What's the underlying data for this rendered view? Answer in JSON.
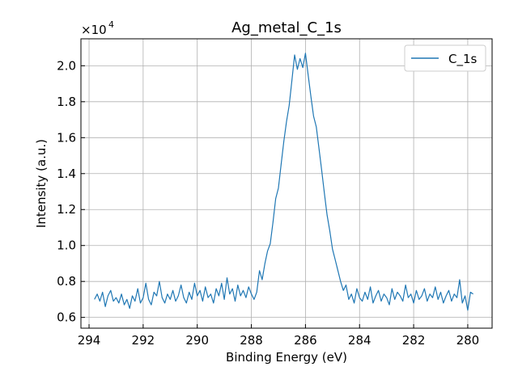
{
  "chart_data": {
    "type": "line",
    "title": "Ag_metal_C_1s",
    "xlabel": "Binding Energy (eV)",
    "ylabel": "Intensity (a.u.)",
    "y_scale_label": "×10",
    "y_scale_exponent": "4",
    "y_multiplier": 10000,
    "xlim": [
      294.3,
      279.1
    ],
    "ylim": [
      5400,
      21500
    ],
    "x_reversed": true,
    "grid": true,
    "legend_position": "top-right",
    "x_ticks": [
      294,
      292,
      290,
      288,
      286,
      284,
      282,
      280
    ],
    "x_tick_labels": [
      "294",
      "292",
      "290",
      "288",
      "286",
      "284",
      "282",
      "280"
    ],
    "y_ticks": [
      6000,
      8000,
      10000,
      12000,
      14000,
      16000,
      18000,
      20000
    ],
    "y_tick_labels": [
      "0.6",
      "0.8",
      "1.0",
      "1.2",
      "1.4",
      "1.6",
      "1.8",
      "2.0"
    ],
    "series": [
      {
        "name": "C_1s",
        "color": "#1f77b4",
        "x": [
          293.8,
          293.7,
          293.6,
          293.5,
          293.4,
          293.3,
          293.2,
          293.1,
          293.0,
          292.9,
          292.8,
          292.7,
          292.6,
          292.5,
          292.4,
          292.3,
          292.2,
          292.1,
          292.0,
          291.9,
          291.8,
          291.7,
          291.6,
          291.5,
          291.4,
          291.3,
          291.2,
          291.1,
          291.0,
          290.9,
          290.8,
          290.7,
          290.6,
          290.5,
          290.4,
          290.3,
          290.2,
          290.1,
          290.0,
          289.9,
          289.8,
          289.7,
          289.6,
          289.5,
          289.4,
          289.3,
          289.2,
          289.1,
          289.0,
          288.9,
          288.8,
          288.7,
          288.6,
          288.5,
          288.4,
          288.3,
          288.2,
          288.1,
          288.0,
          287.9,
          287.8,
          287.7,
          287.6,
          287.5,
          287.4,
          287.3,
          287.2,
          287.1,
          287.0,
          286.9,
          286.8,
          286.7,
          286.6,
          286.5,
          286.4,
          286.3,
          286.2,
          286.1,
          286.0,
          285.9,
          285.8,
          285.7,
          285.6,
          285.5,
          285.4,
          285.3,
          285.2,
          285.1,
          285.0,
          284.9,
          284.8,
          284.7,
          284.6,
          284.5,
          284.4,
          284.3,
          284.2,
          284.1,
          284.0,
          283.9,
          283.8,
          283.7,
          283.6,
          283.5,
          283.4,
          283.3,
          283.2,
          283.1,
          283.0,
          282.9,
          282.8,
          282.7,
          282.6,
          282.5,
          282.4,
          282.3,
          282.2,
          282.1,
          282.0,
          281.9,
          281.8,
          281.7,
          281.6,
          281.5,
          281.4,
          281.3,
          281.2,
          281.1,
          281.0,
          280.9,
          280.8,
          280.7,
          280.6,
          280.5,
          280.4,
          280.3,
          280.2,
          280.1,
          280.0,
          279.9,
          279.8
        ],
        "values": [
          7000,
          7300,
          6900,
          7400,
          6600,
          7200,
          7500,
          6900,
          7100,
          6800,
          7300,
          6700,
          7000,
          6500,
          7200,
          6900,
          7600,
          6800,
          7100,
          7900,
          7000,
          6700,
          7400,
          7200,
          8000,
          7100,
          6800,
          7300,
          7000,
          7500,
          6900,
          7200,
          7800,
          7100,
          6800,
          7400,
          7000,
          7900,
          7200,
          7500,
          6900,
          7700,
          7100,
          7300,
          6800,
          7600,
          7200,
          7900,
          7000,
          8200,
          7300,
          7600,
          6900,
          7800,
          7200,
          7500,
          7100,
          7700,
          7300,
          7000,
          7400,
          8600,
          8100,
          9000,
          9700,
          10100,
          11300,
          12600,
          13200,
          14500,
          15800,
          16900,
          17800,
          19200,
          20600,
          19800,
          20400,
          19900,
          20700,
          19500,
          18300,
          17200,
          16600,
          15400,
          14200,
          12900,
          11700,
          10800,
          9800,
          9200,
          8600,
          8000,
          7500,
          7800,
          7000,
          7300,
          6800,
          7600,
          7100,
          6900,
          7400,
          7000,
          7700,
          6800,
          7200,
          7500,
          6900,
          7300,
          7100,
          6700,
          7600,
          7000,
          7400,
          7200,
          6900,
          7800,
          7100,
          7300,
          6800,
          7500,
          7000,
          7200,
          7600,
          6900,
          7300,
          7100,
          7700,
          7000,
          7400,
          6800,
          7200,
          7500,
          6900,
          7300,
          7100,
          8100,
          6800,
          7200,
          6400,
          7400,
          7300
        ]
      }
    ]
  }
}
